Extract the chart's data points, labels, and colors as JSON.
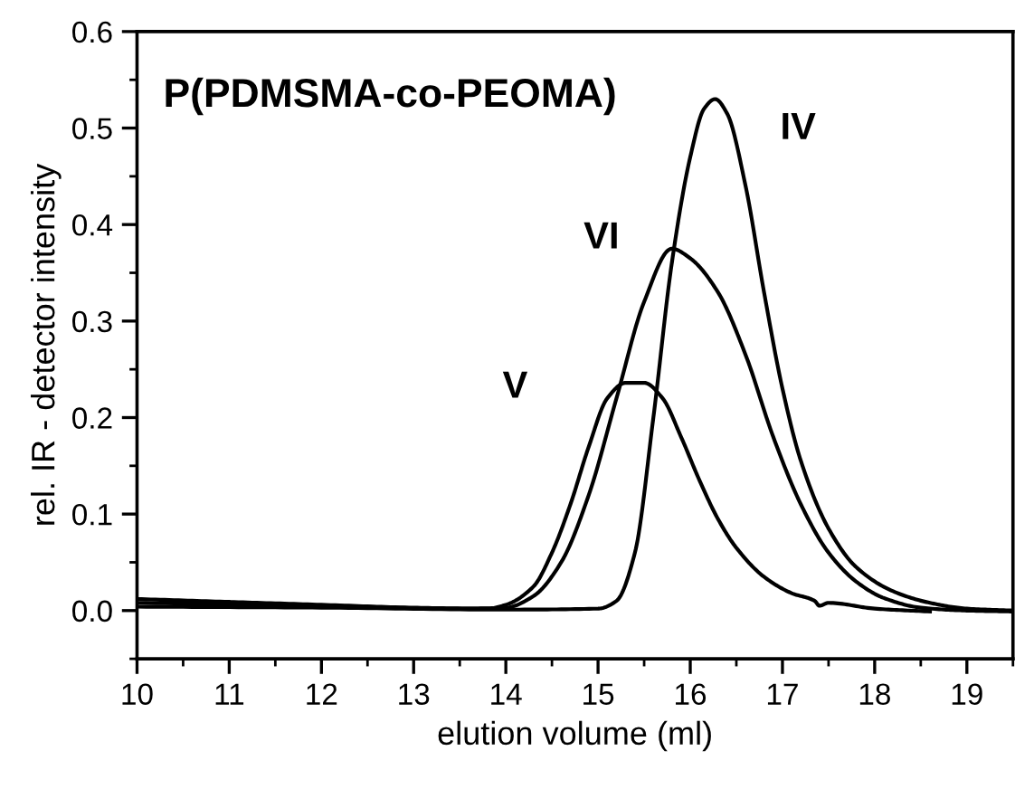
{
  "chart_data": {
    "type": "line",
    "title": "P(PDMSMA-co-PEOMA)",
    "xlabel": "elution volume (ml)",
    "ylabel": "rel. IR - detector intensity",
    "xlim": [
      10,
      19.5
    ],
    "xticks": [
      10,
      11,
      12,
      13,
      14,
      15,
      16,
      17,
      18,
      19
    ],
    "ylim": [
      -0.05,
      0.6
    ],
    "yticks": [
      {
        "value": 0,
        "label": "0.0"
      },
      0.1,
      0.2,
      0.3,
      0.4,
      0.5,
      0.6
    ],
    "grid": false,
    "legend": false,
    "marker": "none",
    "line_style": "solid",
    "series": [
      {
        "name": "V",
        "color": "#000000",
        "x": [
          10,
          11,
          12,
          13,
          13.8,
          14,
          14.3,
          14.5,
          14.7,
          14.9,
          15.1,
          15.3,
          15.5,
          15.7,
          15.9,
          16.1,
          16.3,
          16.5,
          16.8,
          17.1,
          17.35,
          17.4,
          17.5,
          18,
          18.6
        ],
        "values": [
          0.012,
          0.009,
          0.006,
          0.003,
          0.002,
          0.006,
          0.025,
          0.06,
          0.11,
          0.17,
          0.22,
          0.236,
          0.236,
          0.22,
          0.18,
          0.135,
          0.095,
          0.065,
          0.035,
          0.018,
          0.01,
          0.005,
          0.008,
          0.002,
          -0.001
        ]
      },
      {
        "name": "VI",
        "color": "#000000",
        "x": [
          10,
          12,
          13.5,
          14,
          14.3,
          14.6,
          14.9,
          15.2,
          15.5,
          15.8,
          16.0,
          16.3,
          16.6,
          16.9,
          17.2,
          17.5,
          17.8,
          18.1,
          18.5,
          19,
          19.5
        ],
        "values": [
          0.008,
          0.005,
          0.002,
          0.003,
          0.015,
          0.05,
          0.12,
          0.22,
          0.32,
          0.375,
          0.365,
          0.33,
          0.265,
          0.18,
          0.11,
          0.06,
          0.03,
          0.013,
          0.003,
          0.0,
          -0.001
        ]
      },
      {
        "name": "IV",
        "color": "#000000",
        "x": [
          10,
          12,
          14,
          15,
          15.2,
          15.4,
          15.6,
          15.8,
          16.0,
          16.15,
          16.27,
          16.4,
          16.6,
          16.8,
          17.0,
          17.2,
          17.5,
          17.8,
          18.2,
          18.6,
          19,
          19.5
        ],
        "values": [
          0.004,
          0.003,
          0.001,
          0.002,
          0.01,
          0.06,
          0.2,
          0.36,
          0.47,
          0.52,
          0.53,
          0.515,
          0.44,
          0.33,
          0.23,
          0.155,
          0.085,
          0.045,
          0.02,
          0.008,
          0.002,
          0.0
        ]
      }
    ]
  }
}
